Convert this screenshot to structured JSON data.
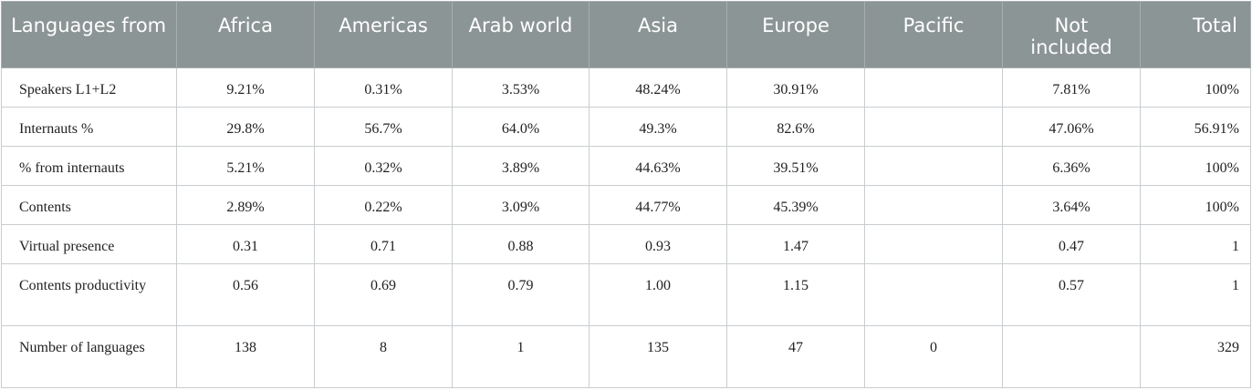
{
  "columns": [
    "Languages from",
    "Africa",
    "Americas",
    "Arab world",
    "Asia",
    "Europe",
    "Pacific",
    "Not included",
    "Total"
  ],
  "rows": [
    {
      "label": "Speakers L1+L2",
      "values": [
        "9.21%",
        "0.31%",
        "3.53%",
        "48.24%",
        "30.91%",
        "",
        "7.81%",
        "100%"
      ]
    },
    {
      "label": "Internauts %",
      "values": [
        "29.8%",
        "56.7%",
        "64.0%",
        "49.3%",
        "82.6%",
        "",
        "47.06%",
        "56.91%"
      ]
    },
    {
      "label": "% from internauts",
      "values": [
        "5.21%",
        "0.32%",
        "3.89%",
        "44.63%",
        "39.51%",
        "",
        "6.36%",
        "100%"
      ]
    },
    {
      "label": "Contents",
      "values": [
        "2.89%",
        "0.22%",
        "3.09%",
        "44.77%",
        "45.39%",
        "",
        "3.64%",
        "100%"
      ]
    },
    {
      "label": "Virtual presence",
      "values": [
        "0.31",
        "0.71",
        "0.88",
        "0.93",
        "1.47",
        "",
        "0.47",
        "1"
      ]
    },
    {
      "label": "Contents productivity",
      "values": [
        "0.56",
        "0.69",
        "0.79",
        "1.00",
        "1.15",
        "",
        "0.57",
        "1"
      ]
    },
    {
      "label": "Number of languages",
      "values": [
        "138",
        "8",
        "1",
        "135",
        "47",
        "0",
        "",
        "329"
      ]
    }
  ],
  "colors": {
    "header_bg": "#8c9596",
    "header_text": "#ffffff",
    "grid": "#c9cdcf"
  }
}
